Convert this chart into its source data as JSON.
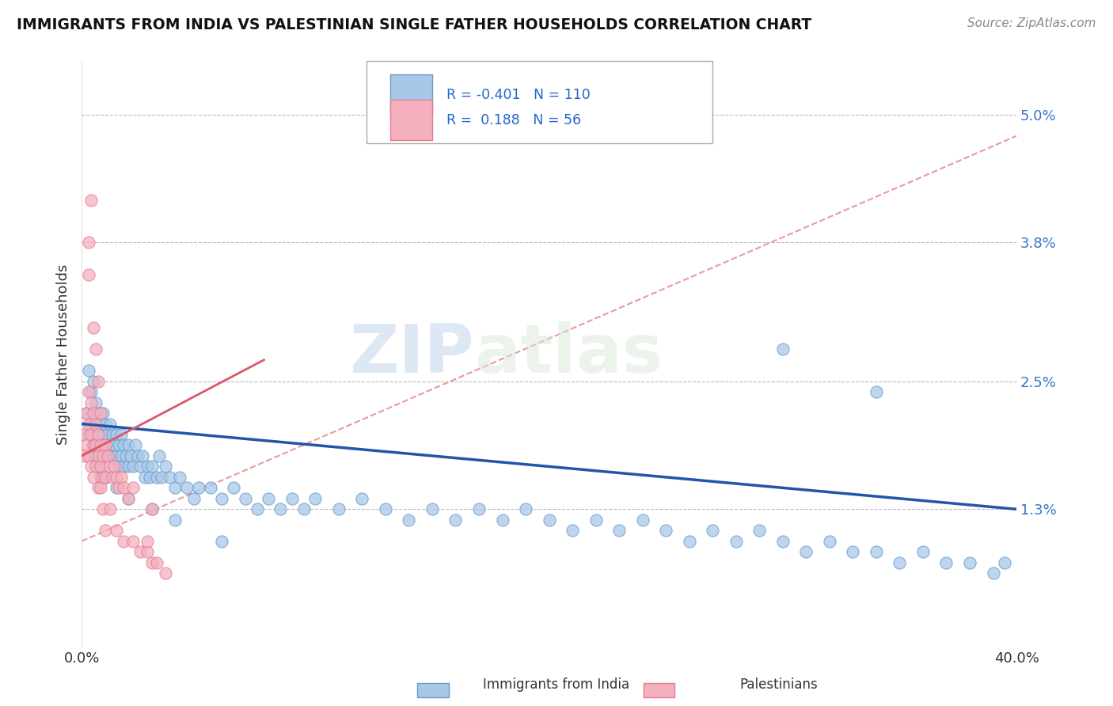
{
  "title": "IMMIGRANTS FROM INDIA VS PALESTINIAN SINGLE FATHER HOUSEHOLDS CORRELATION CHART",
  "source": "Source: ZipAtlas.com",
  "ylabel": "Single Father Households",
  "yticks": [
    0.013,
    0.025,
    0.038,
    0.05
  ],
  "ytick_labels": [
    "1.3%",
    "2.5%",
    "3.8%",
    "5.0%"
  ],
  "xmin": 0.0,
  "xmax": 0.4,
  "ymin": 0.0,
  "ymax": 0.055,
  "blue_color": "#a8c8e8",
  "blue_edge": "#6699cc",
  "pink_color": "#f4b0be",
  "pink_edge": "#e87890",
  "trend_blue_color": "#2255aa",
  "trend_pink_solid_color": "#dd5566",
  "trend_pink_dash_color": "#ee9999",
  "legend_label1": "Immigrants from India",
  "legend_label2": "Palestinians",
  "legend_R1": "-0.401",
  "legend_N1": "110",
  "legend_R2": "0.188",
  "legend_N2": "56",
  "blue_x": [
    0.002,
    0.003,
    0.003,
    0.004,
    0.004,
    0.005,
    0.005,
    0.005,
    0.006,
    0.006,
    0.006,
    0.007,
    0.007,
    0.007,
    0.008,
    0.008,
    0.008,
    0.009,
    0.009,
    0.009,
    0.01,
    0.01,
    0.01,
    0.011,
    0.011,
    0.012,
    0.012,
    0.013,
    0.013,
    0.014,
    0.014,
    0.015,
    0.015,
    0.016,
    0.016,
    0.017,
    0.017,
    0.018,
    0.018,
    0.019,
    0.02,
    0.02,
    0.021,
    0.022,
    0.023,
    0.024,
    0.025,
    0.026,
    0.027,
    0.028,
    0.029,
    0.03,
    0.032,
    0.033,
    0.034,
    0.036,
    0.038,
    0.04,
    0.042,
    0.045,
    0.048,
    0.05,
    0.055,
    0.06,
    0.065,
    0.07,
    0.075,
    0.08,
    0.085,
    0.09,
    0.095,
    0.1,
    0.11,
    0.12,
    0.13,
    0.14,
    0.15,
    0.16,
    0.17,
    0.18,
    0.19,
    0.2,
    0.21,
    0.22,
    0.23,
    0.24,
    0.25,
    0.26,
    0.27,
    0.28,
    0.29,
    0.3,
    0.31,
    0.32,
    0.33,
    0.34,
    0.35,
    0.36,
    0.37,
    0.38,
    0.39,
    0.395,
    0.01,
    0.015,
    0.02,
    0.03,
    0.04,
    0.06,
    0.3,
    0.34
  ],
  "blue_y": [
    0.022,
    0.026,
    0.02,
    0.024,
    0.021,
    0.025,
    0.022,
    0.019,
    0.023,
    0.021,
    0.018,
    0.022,
    0.02,
    0.017,
    0.021,
    0.019,
    0.016,
    0.02,
    0.022,
    0.018,
    0.021,
    0.019,
    0.016,
    0.02,
    0.018,
    0.021,
    0.019,
    0.02,
    0.018,
    0.019,
    0.017,
    0.02,
    0.018,
    0.019,
    0.017,
    0.018,
    0.02,
    0.019,
    0.017,
    0.018,
    0.019,
    0.017,
    0.018,
    0.017,
    0.019,
    0.018,
    0.017,
    0.018,
    0.016,
    0.017,
    0.016,
    0.017,
    0.016,
    0.018,
    0.016,
    0.017,
    0.016,
    0.015,
    0.016,
    0.015,
    0.014,
    0.015,
    0.015,
    0.014,
    0.015,
    0.014,
    0.013,
    0.014,
    0.013,
    0.014,
    0.013,
    0.014,
    0.013,
    0.014,
    0.013,
    0.012,
    0.013,
    0.012,
    0.013,
    0.012,
    0.013,
    0.012,
    0.011,
    0.012,
    0.011,
    0.012,
    0.011,
    0.01,
    0.011,
    0.01,
    0.011,
    0.01,
    0.009,
    0.01,
    0.009,
    0.009,
    0.008,
    0.009,
    0.008,
    0.008,
    0.007,
    0.008,
    0.016,
    0.015,
    0.014,
    0.013,
    0.012,
    0.01,
    0.028,
    0.024
  ],
  "pink_x": [
    0.001,
    0.001,
    0.002,
    0.002,
    0.003,
    0.003,
    0.003,
    0.004,
    0.004,
    0.004,
    0.005,
    0.005,
    0.005,
    0.006,
    0.006,
    0.006,
    0.007,
    0.007,
    0.007,
    0.008,
    0.008,
    0.008,
    0.009,
    0.009,
    0.01,
    0.01,
    0.011,
    0.012,
    0.013,
    0.014,
    0.015,
    0.016,
    0.017,
    0.018,
    0.02,
    0.022,
    0.003,
    0.003,
    0.004,
    0.005,
    0.006,
    0.007,
    0.008,
    0.009,
    0.01,
    0.012,
    0.015,
    0.018,
    0.022,
    0.025,
    0.028,
    0.03,
    0.032,
    0.036,
    0.03,
    0.028
  ],
  "pink_y": [
    0.02,
    0.018,
    0.022,
    0.019,
    0.024,
    0.021,
    0.018,
    0.023,
    0.02,
    0.017,
    0.022,
    0.019,
    0.016,
    0.021,
    0.019,
    0.017,
    0.02,
    0.018,
    0.015,
    0.019,
    0.017,
    0.015,
    0.018,
    0.016,
    0.019,
    0.016,
    0.018,
    0.017,
    0.016,
    0.017,
    0.016,
    0.015,
    0.016,
    0.015,
    0.014,
    0.015,
    0.035,
    0.038,
    0.042,
    0.03,
    0.028,
    0.025,
    0.022,
    0.013,
    0.011,
    0.013,
    0.011,
    0.01,
    0.01,
    0.009,
    0.009,
    0.008,
    0.008,
    0.007,
    0.013,
    0.01
  ]
}
